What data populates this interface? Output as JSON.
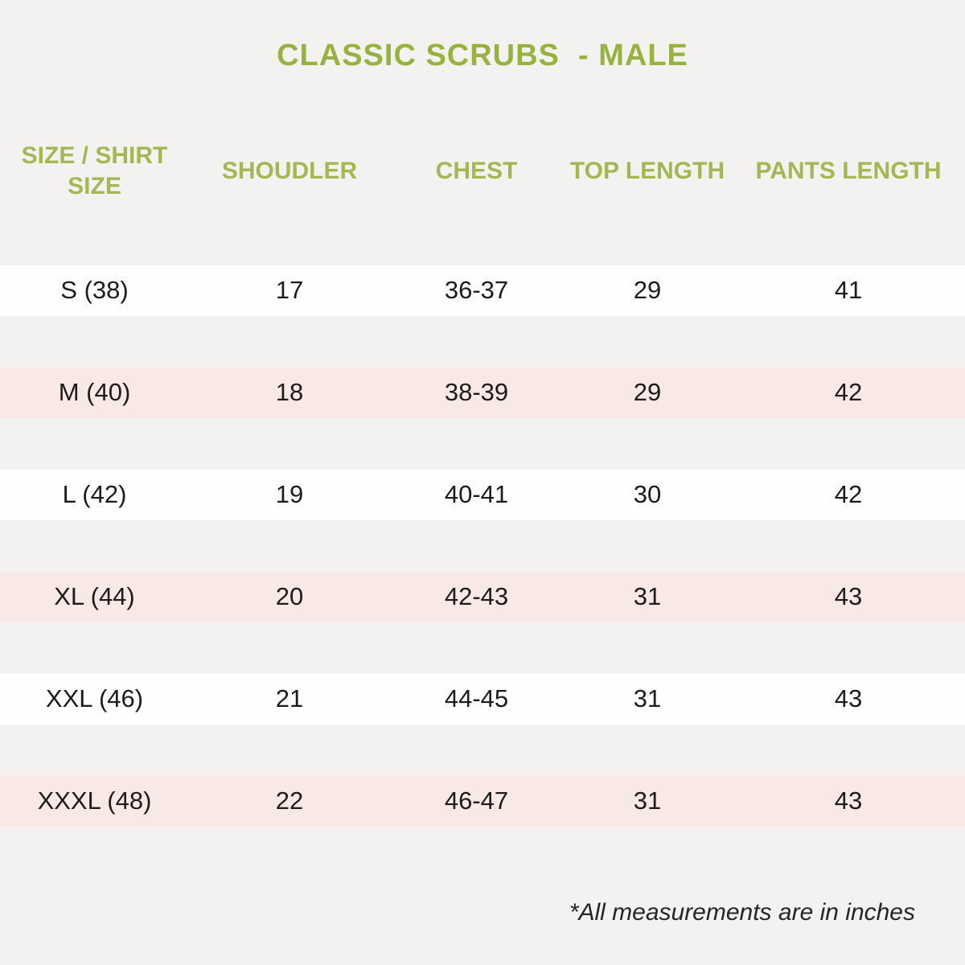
{
  "title": {
    "text": "CLASSIC SCRUBS  - MALE",
    "color": "#98b33d"
  },
  "table": {
    "headers": [
      "SIZE / SHIRT SIZE",
      "SHOUDLER",
      "CHEST",
      "TOP LENGTH",
      "PANTS LENGTH"
    ],
    "rows": [
      {
        "cells": [
          "S (38)",
          "17",
          "36-37",
          "29",
          "41"
        ]
      },
      {
        "cells": [
          "M (40)",
          "18",
          "38-39",
          "29",
          "42"
        ]
      },
      {
        "cells": [
          "L (42)",
          "19",
          "40-41",
          "30",
          "42"
        ]
      },
      {
        "cells": [
          "XL (44)",
          "20",
          "42-43",
          "31",
          "43"
        ]
      },
      {
        "cells": [
          "XXL (46)",
          "21",
          "44-45",
          "31",
          "43"
        ]
      },
      {
        "cells": [
          "XXXL (48)",
          "22",
          "46-47",
          "31",
          "43"
        ]
      }
    ],
    "row_colors": {
      "white_band": "#fefefe",
      "pink_band": "#f8e9e7"
    }
  },
  "footnote": "*All measurements are in inches",
  "colors": {
    "page_background": "#f3f2f0",
    "accent_green_title": "#98b33d",
    "accent_green_headers": "#a3b852",
    "data_text": "#1d1b1b"
  },
  "chart_data": {
    "type": "table",
    "title": "CLASSIC SCRUBS  - MALE",
    "columns": [
      "SIZE / SHIRT SIZE",
      "SHOUDLER",
      "CHEST",
      "TOP LENGTH",
      "PANTS LENGTH"
    ],
    "rows": [
      [
        "S (38)",
        "17",
        "36-37",
        "29",
        "41"
      ],
      [
        "M (40)",
        "18",
        "38-39",
        "29",
        "42"
      ],
      [
        "L (42)",
        "19",
        "40-41",
        "30",
        "42"
      ],
      [
        "XL (44)",
        "20",
        "42-43",
        "31",
        "43"
      ],
      [
        "XXL (46)",
        "21",
        "44-45",
        "31",
        "43"
      ],
      [
        "XXXL (48)",
        "22",
        "46-47",
        "31",
        "43"
      ]
    ],
    "annotations": [
      "*All measurements are in inches"
    ]
  }
}
